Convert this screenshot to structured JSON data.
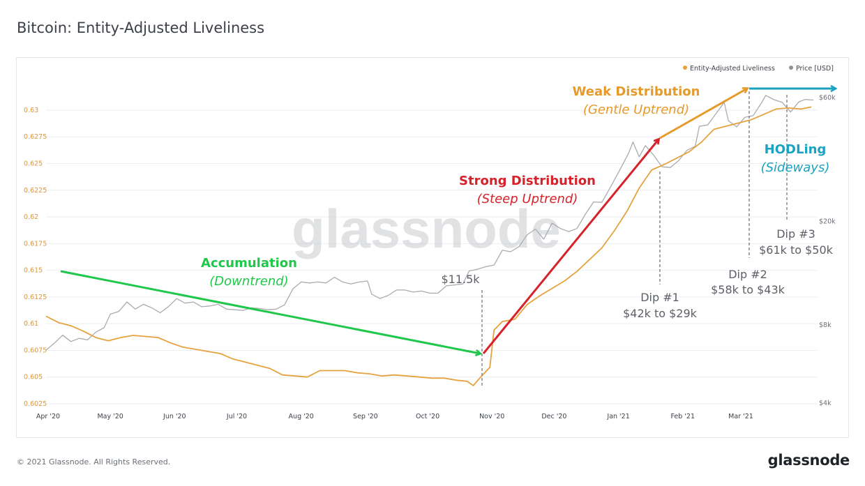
{
  "page": {
    "title": "Bitcoin: Entity-Adjusted Liveliness",
    "footer_copyright": "© 2021 Glassnode. All Rights Reserved.",
    "footer_logo": "glassnode",
    "watermark": "glassnode"
  },
  "colors": {
    "liveliness": "#e5a23e",
    "price": "#a9abaf",
    "accumulation": "#1fc74a",
    "strong_distribution": "#d7222a",
    "weak_distribution": "#e59a2a",
    "hodling": "#1aa2c1"
  },
  "annotations": {
    "accumulation_title": "Accumulation",
    "accumulation_sub": "(Downtrend)",
    "strong_title": "Strong Distribution",
    "strong_sub": "(Steep Uptrend)",
    "weak_title": "Weak Distribution",
    "weak_sub": "(Gentle Uptrend)",
    "hodl_title": "HODLing",
    "hodl_sub": "(Sideways)",
    "price_11k": "$11.5k",
    "dip1_title": "Dip #1",
    "dip1_range": "$42k to $29k",
    "dip2_title": "Dip #2",
    "dip2_range": "$58k to $43k",
    "dip3_title": "Dip #3",
    "dip3_range": "$61k to $50k"
  },
  "chart_data": {
    "type": "line",
    "title": "Bitcoin: Entity-Adjusted Liveliness",
    "legend_position": "top-right",
    "grid": true,
    "x_tick_labels": [
      "Apr '20",
      "May '20",
      "Jun '20",
      "Jul '20",
      "Aug '20",
      "Sep '20",
      "Oct '20",
      "Nov '20",
      "Dec '20",
      "Jan '21",
      "Feb '21",
      "Mar '21"
    ],
    "x_ticks": [
      "2020-04-01",
      "2020-05-01",
      "2020-06-01",
      "2020-07-01",
      "2020-08-01",
      "2020-09-01",
      "2020-10-01",
      "2020-11-01",
      "2020-12-01",
      "2021-01-01",
      "2021-02-01",
      "2021-03-01"
    ],
    "x_range": [
      "2020-03-31",
      "2021-04-07"
    ],
    "y_left": {
      "ticks": [
        0.6025,
        0.605,
        0.6075,
        0.61,
        0.6125,
        0.615,
        0.6175,
        0.62,
        0.6225,
        0.625,
        0.6275,
        0.63
      ],
      "tick_labels": [
        "0.6025",
        "0.605",
        "0.6075",
        "0.61",
        "0.6125",
        "0.615",
        "0.6175",
        "0.62",
        "0.6225",
        "0.625",
        "0.6275",
        "0.63"
      ],
      "range": [
        0.6025,
        0.6315
      ]
    },
    "y_right": {
      "scale": "log",
      "ticks": [
        4000,
        8000,
        20000,
        60000
      ],
      "tick_labels": [
        "$4k",
        "$8k",
        "$20k",
        "$60k"
      ]
    },
    "series": [
      {
        "name": "Entity-Adjusted Liveliness",
        "axis": "left",
        "points": [
          [
            "2020-03-31",
            0.6107
          ],
          [
            "2020-04-06",
            0.6101
          ],
          [
            "2020-04-12",
            0.6098
          ],
          [
            "2020-04-18",
            0.6093
          ],
          [
            "2020-04-24",
            0.6087
          ],
          [
            "2020-04-30",
            0.6084
          ],
          [
            "2020-05-06",
            0.6087
          ],
          [
            "2020-05-12",
            0.6089
          ],
          [
            "2020-05-18",
            0.6088
          ],
          [
            "2020-05-24",
            0.6087
          ],
          [
            "2020-05-30",
            0.6082
          ],
          [
            "2020-06-05",
            0.6078
          ],
          [
            "2020-06-11",
            0.6076
          ],
          [
            "2020-06-17",
            0.6074
          ],
          [
            "2020-06-23",
            0.6072
          ],
          [
            "2020-06-29",
            0.6067
          ],
          [
            "2020-07-05",
            0.6064
          ],
          [
            "2020-07-11",
            0.6061
          ],
          [
            "2020-07-17",
            0.6058
          ],
          [
            "2020-07-23",
            0.6052
          ],
          [
            "2020-07-29",
            0.6051
          ],
          [
            "2020-08-04",
            0.605
          ],
          [
            "2020-08-10",
            0.6056
          ],
          [
            "2020-08-16",
            0.6056
          ],
          [
            "2020-08-22",
            0.6056
          ],
          [
            "2020-08-28",
            0.6054
          ],
          [
            "2020-09-03",
            0.6053
          ],
          [
            "2020-09-09",
            0.6051
          ],
          [
            "2020-09-15",
            0.6052
          ],
          [
            "2020-09-21",
            0.6051
          ],
          [
            "2020-09-27",
            0.605
          ],
          [
            "2020-10-03",
            0.6049
          ],
          [
            "2020-10-09",
            0.6049
          ],
          [
            "2020-10-15",
            0.6047
          ],
          [
            "2020-10-20",
            0.6046
          ],
          [
            "2020-10-23",
            0.6042
          ],
          [
            "2020-10-27",
            0.6051
          ],
          [
            "2020-10-31",
            0.6059
          ],
          [
            "2020-11-02",
            0.6094
          ],
          [
            "2020-11-06",
            0.6102
          ],
          [
            "2020-11-12",
            0.6104
          ],
          [
            "2020-11-18",
            0.6118
          ],
          [
            "2020-11-24",
            0.6126
          ],
          [
            "2020-11-30",
            0.6133
          ],
          [
            "2020-12-06",
            0.614
          ],
          [
            "2020-12-12",
            0.6149
          ],
          [
            "2020-12-18",
            0.616
          ],
          [
            "2020-12-24",
            0.6171
          ],
          [
            "2020-12-30",
            0.6187
          ],
          [
            "2021-01-05",
            0.6205
          ],
          [
            "2021-01-11",
            0.6227
          ],
          [
            "2021-01-17",
            0.6244
          ],
          [
            "2021-01-23",
            0.6249
          ],
          [
            "2021-01-29",
            0.6255
          ],
          [
            "2021-02-04",
            0.6261
          ],
          [
            "2021-02-10",
            0.627
          ],
          [
            "2021-02-16",
            0.6282
          ],
          [
            "2021-02-22",
            0.6285
          ],
          [
            "2021-02-28",
            0.6288
          ],
          [
            "2021-03-06",
            0.6291
          ],
          [
            "2021-03-12",
            0.6296
          ],
          [
            "2021-03-18",
            0.6301
          ],
          [
            "2021-03-24",
            0.6302
          ],
          [
            "2021-03-30",
            0.6301
          ],
          [
            "2021-04-04",
            0.6303
          ]
        ]
      },
      {
        "name": "Price [USD]",
        "axis": "right",
        "points": [
          [
            "2020-03-31",
            6400
          ],
          [
            "2020-04-04",
            6800
          ],
          [
            "2020-04-08",
            7300
          ],
          [
            "2020-04-12",
            6900
          ],
          [
            "2020-04-16",
            7100
          ],
          [
            "2020-04-20",
            7000
          ],
          [
            "2020-04-24",
            7500
          ],
          [
            "2020-04-28",
            7800
          ],
          [
            "2020-05-01",
            8800
          ],
          [
            "2020-05-05",
            9000
          ],
          [
            "2020-05-09",
            9800
          ],
          [
            "2020-05-13",
            9200
          ],
          [
            "2020-05-17",
            9600
          ],
          [
            "2020-05-21",
            9300
          ],
          [
            "2020-05-25",
            8900
          ],
          [
            "2020-05-29",
            9400
          ],
          [
            "2020-06-02",
            10100
          ],
          [
            "2020-06-06",
            9700
          ],
          [
            "2020-06-10",
            9800
          ],
          [
            "2020-06-14",
            9400
          ],
          [
            "2020-06-18",
            9450
          ],
          [
            "2020-06-22",
            9600
          ],
          [
            "2020-06-26",
            9200
          ],
          [
            "2020-06-30",
            9150
          ],
          [
            "2020-07-04",
            9100
          ],
          [
            "2020-07-08",
            9300
          ],
          [
            "2020-07-12",
            9250
          ],
          [
            "2020-07-16",
            9150
          ],
          [
            "2020-07-20",
            9200
          ],
          [
            "2020-07-24",
            9550
          ],
          [
            "2020-07-28",
            11000
          ],
          [
            "2020-08-01",
            11700
          ],
          [
            "2020-08-05",
            11600
          ],
          [
            "2020-08-09",
            11700
          ],
          [
            "2020-08-13",
            11600
          ],
          [
            "2020-08-17",
            12200
          ],
          [
            "2020-08-21",
            11700
          ],
          [
            "2020-08-25",
            11500
          ],
          [
            "2020-08-29",
            11700
          ],
          [
            "2020-09-02",
            11800
          ],
          [
            "2020-09-04",
            10500
          ],
          [
            "2020-09-08",
            10100
          ],
          [
            "2020-09-12",
            10400
          ],
          [
            "2020-09-16",
            10900
          ],
          [
            "2020-09-20",
            10900
          ],
          [
            "2020-09-24",
            10700
          ],
          [
            "2020-09-28",
            10800
          ],
          [
            "2020-10-02",
            10600
          ],
          [
            "2020-10-06",
            10600
          ],
          [
            "2020-10-10",
            11300
          ],
          [
            "2020-10-14",
            11400
          ],
          [
            "2020-10-18",
            11500
          ],
          [
            "2020-10-21",
            12900
          ],
          [
            "2020-10-25",
            13100
          ],
          [
            "2020-10-29",
            13400
          ],
          [
            "2020-11-02",
            13600
          ],
          [
            "2020-11-06",
            15500
          ],
          [
            "2020-11-10",
            15300
          ],
          [
            "2020-11-14",
            16000
          ],
          [
            "2020-11-18",
            17800
          ],
          [
            "2020-11-22",
            18700
          ],
          [
            "2020-11-26",
            17100
          ],
          [
            "2020-11-30",
            19700
          ],
          [
            "2020-12-04",
            18800
          ],
          [
            "2020-12-08",
            18300
          ],
          [
            "2020-12-12",
            18800
          ],
          [
            "2020-12-16",
            21300
          ],
          [
            "2020-12-20",
            23800
          ],
          [
            "2020-12-24",
            23700
          ],
          [
            "2020-12-28",
            27000
          ],
          [
            "2021-01-02",
            32000
          ],
          [
            "2021-01-06",
            36800
          ],
          [
            "2021-01-08",
            40500
          ],
          [
            "2021-01-11",
            35500
          ],
          [
            "2021-01-14",
            39200
          ],
          [
            "2021-01-18",
            36000
          ],
          [
            "2021-01-22",
            32500
          ],
          [
            "2021-01-26",
            32300
          ],
          [
            "2021-01-30",
            34300
          ],
          [
            "2021-02-03",
            37600
          ],
          [
            "2021-02-07",
            39000
          ],
          [
            "2021-02-09",
            46500
          ],
          [
            "2021-02-13",
            47100
          ],
          [
            "2021-02-17",
            52000
          ],
          [
            "2021-02-21",
            57500
          ],
          [
            "2021-02-23",
            48900
          ],
          [
            "2021-02-27",
            46300
          ],
          [
            "2021-03-03",
            50400
          ],
          [
            "2021-03-07",
            51200
          ],
          [
            "2021-03-11",
            57300
          ],
          [
            "2021-03-13",
            61200
          ],
          [
            "2021-03-17",
            58900
          ],
          [
            "2021-03-21",
            57500
          ],
          [
            "2021-03-25",
            52800
          ],
          [
            "2021-03-29",
            57800
          ],
          [
            "2021-04-01",
            59000
          ],
          [
            "2021-04-05",
            58700
          ]
        ]
      }
    ]
  }
}
